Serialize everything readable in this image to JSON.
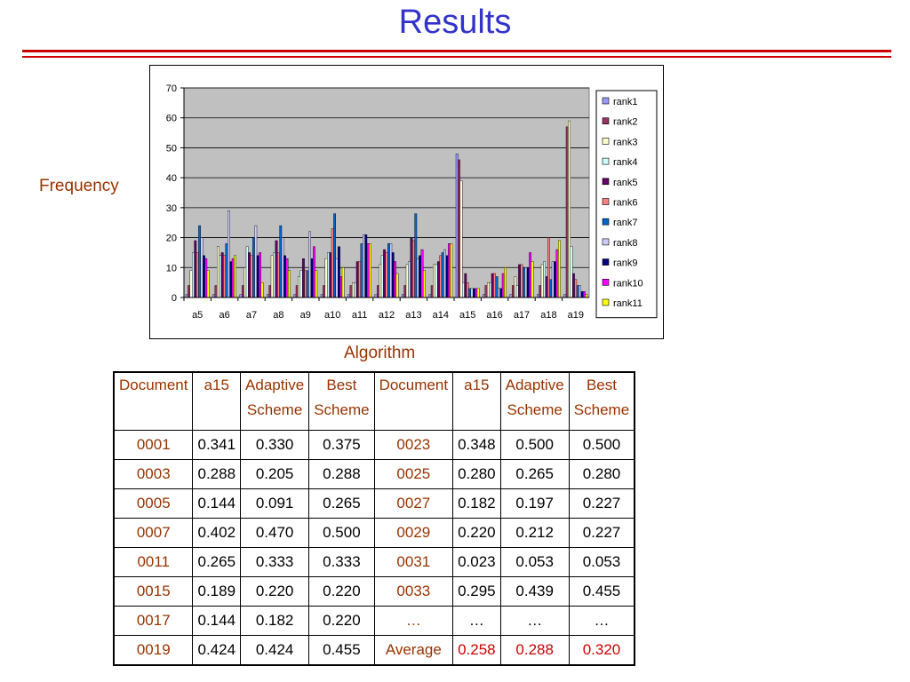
{
  "slide": {
    "title": "Results",
    "side_y_label": "Frequency",
    "side_x_label": "Algorithm"
  },
  "chart_data": {
    "type": "bar",
    "categories": [
      "a5",
      "a6",
      "a7",
      "a8",
      "a9",
      "a10",
      "a11",
      "a12",
      "a13",
      "a14",
      "a15",
      "a16",
      "a17",
      "a18",
      "a19"
    ],
    "ylim": [
      0,
      70
    ],
    "yticks": [
      0,
      10,
      20,
      30,
      40,
      50,
      60,
      70
    ],
    "plot_background": "#c0c0c0",
    "legend_position": "right",
    "series": [
      {
        "name": "rank1",
        "color": "#9999ff",
        "values": [
          1,
          1,
          1,
          1,
          1,
          1,
          1,
          1,
          1,
          1,
          48,
          1,
          1,
          1,
          1
        ]
      },
      {
        "name": "rank2",
        "color": "#993366",
        "values": [
          4,
          4,
          4,
          4,
          4,
          4,
          4,
          4,
          4,
          4,
          46,
          4,
          4,
          4,
          57
        ]
      },
      {
        "name": "rank3",
        "color": "#ffffcc",
        "values": [
          9,
          17,
          10,
          14,
          7,
          13,
          5,
          11,
          11,
          11,
          39,
          5,
          7,
          11,
          59
        ]
      },
      {
        "name": "rank4",
        "color": "#ccffff",
        "values": [
          15,
          14,
          17,
          15,
          9,
          15,
          5,
          14,
          12,
          11,
          5,
          5,
          4,
          12,
          17
        ]
      },
      {
        "name": "rank5",
        "color": "#660066",
        "values": [
          19,
          15,
          15,
          19,
          13,
          15,
          12,
          16,
          20,
          12,
          8,
          8,
          11,
          7,
          8
        ]
      },
      {
        "name": "rank6",
        "color": "#ff8080",
        "values": [
          15,
          14,
          14,
          15,
          9,
          23,
          12,
          15,
          19,
          14,
          5,
          8,
          11,
          20,
          6
        ]
      },
      {
        "name": "rank7",
        "color": "#0066cc",
        "values": [
          24,
          18,
          20,
          24,
          9,
          28,
          18,
          18,
          28,
          15,
          3,
          7,
          10,
          6,
          4
        ]
      },
      {
        "name": "rank8",
        "color": "#ccccff",
        "values": [
          20,
          29,
          24,
          20,
          22,
          13,
          21,
          18,
          13,
          16,
          3,
          3,
          10,
          12,
          4
        ]
      },
      {
        "name": "rank9",
        "color": "#000080",
        "values": [
          14,
          12,
          14,
          14,
          13,
          17,
          21,
          15,
          14,
          14,
          3,
          3,
          10,
          12,
          2
        ]
      },
      {
        "name": "rank10",
        "color": "#ff00ff",
        "values": [
          13,
          13,
          15,
          13,
          17,
          7,
          18,
          12,
          16,
          18,
          3,
          8,
          15,
          16,
          2
        ]
      },
      {
        "name": "rank11",
        "color": "#ffff00",
        "values": [
          9,
          14,
          5,
          9,
          9,
          10,
          18,
          8,
          9,
          18,
          3,
          10,
          12,
          19,
          1
        ]
      }
    ]
  },
  "table": {
    "headers": [
      {
        "line1": "Document",
        "line2": ""
      },
      {
        "line1": "a15",
        "line2": ""
      },
      {
        "line1": "Adaptive",
        "line2": "Scheme"
      },
      {
        "line1": "Best",
        "line2": "Scheme"
      },
      {
        "line1": "Document",
        "line2": ""
      },
      {
        "line1": "a15",
        "line2": ""
      },
      {
        "line1": "Adaptive",
        "line2": "Scheme"
      },
      {
        "line1": "Best",
        "line2": "Scheme"
      }
    ],
    "rows": [
      [
        "0001",
        "0.341",
        "0.330",
        "0.375",
        "0023",
        "0.348",
        "0.500",
        "0.500"
      ],
      [
        "0003",
        "0.288",
        "0.205",
        "0.288",
        "0025",
        "0.280",
        "0.265",
        "0.280"
      ],
      [
        "0005",
        "0.144",
        "0.091",
        "0.265",
        "0027",
        "0.182",
        "0.197",
        "0.227"
      ],
      [
        "0007",
        "0.402",
        "0.470",
        "0.500",
        "0029",
        "0.220",
        "0.212",
        "0.227"
      ],
      [
        "0011",
        "0.265",
        "0.333",
        "0.333",
        "0031",
        "0.023",
        "0.053",
        "0.053"
      ],
      [
        "0015",
        "0.189",
        "0.220",
        "0.220",
        "0033",
        "0.295",
        "0.439",
        "0.455"
      ],
      [
        "0017",
        "0.144",
        "0.182",
        "0.220",
        "…",
        "…",
        "…",
        "…"
      ],
      [
        "0019",
        "0.424",
        "0.424",
        "0.455",
        "Average",
        "0.258",
        "0.288",
        "0.320"
      ]
    ]
  },
  "colors": {
    "title": "#3333cc",
    "rule": "#cc0000",
    "label_brown": "#993300",
    "highlight_red": "#cc0000"
  }
}
